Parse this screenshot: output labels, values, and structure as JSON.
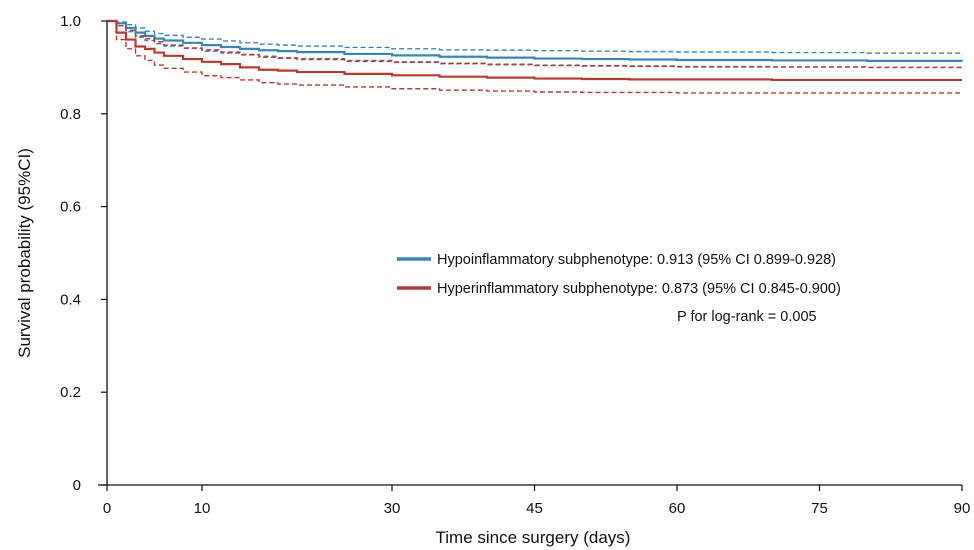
{
  "chart_data": {
    "type": "line",
    "xlabel": "Time since surgery (days)",
    "ylabel": "Survival probability (95%CI)",
    "xlim": [
      0,
      90
    ],
    "ylim": [
      0,
      1.0
    ],
    "x_ticks": [
      0,
      10,
      30,
      45,
      60,
      75,
      90
    ],
    "y_ticks": [
      0,
      0.2,
      0.4,
      0.6,
      0.8,
      1.0
    ],
    "x_tick_labels": [
      "0",
      "10",
      "30",
      "45",
      "60",
      "75",
      "90"
    ],
    "y_tick_labels": [
      "0",
      "0.2",
      "0.4",
      "0.6",
      "0.8",
      "1.0"
    ],
    "grid": false,
    "legend_position": "center-right",
    "annotation": "P for log-rank = 0.005",
    "series": [
      {
        "name": "Hypoinflammatory subphenotype:  0.913 (95% CI 0.899-0.928)",
        "color": "#3a86b8",
        "style": "solid",
        "x": [
          0,
          1,
          2,
          3,
          4,
          5,
          6,
          8,
          10,
          12,
          14,
          16,
          18,
          20,
          25,
          30,
          35,
          40,
          45,
          50,
          55,
          60,
          70,
          80,
          90
        ],
        "y": [
          1.0,
          0.995,
          0.985,
          0.975,
          0.968,
          0.962,
          0.958,
          0.953,
          0.948,
          0.944,
          0.94,
          0.937,
          0.935,
          0.933,
          0.929,
          0.926,
          0.923,
          0.921,
          0.919,
          0.918,
          0.917,
          0.916,
          0.915,
          0.914,
          0.913
        ]
      },
      {
        "name": "Hypo upper 95% CI",
        "color": "#3a86b8",
        "style": "dashed",
        "x": [
          0,
          1,
          2,
          3,
          4,
          5,
          6,
          8,
          10,
          12,
          14,
          16,
          18,
          20,
          25,
          30,
          35,
          40,
          45,
          50,
          55,
          60,
          70,
          80,
          90
        ],
        "y": [
          1.0,
          0.998,
          0.992,
          0.985,
          0.978,
          0.973,
          0.969,
          0.965,
          0.961,
          0.957,
          0.953,
          0.95,
          0.948,
          0.946,
          0.943,
          0.94,
          0.938,
          0.937,
          0.936,
          0.935,
          0.934,
          0.933,
          0.932,
          0.931,
          0.928
        ]
      },
      {
        "name": "Hypo lower 95% CI",
        "color": "#3a86b8",
        "style": "dashed",
        "x": [
          0,
          1,
          2,
          3,
          4,
          5,
          6,
          8,
          10,
          12,
          14,
          16,
          18,
          20,
          25,
          30,
          35,
          40,
          45,
          50,
          55,
          60,
          70,
          80,
          90
        ],
        "y": [
          1.0,
          0.99,
          0.977,
          0.965,
          0.958,
          0.951,
          0.946,
          0.941,
          0.935,
          0.931,
          0.927,
          0.924,
          0.921,
          0.919,
          0.915,
          0.912,
          0.909,
          0.907,
          0.905,
          0.904,
          0.903,
          0.902,
          0.901,
          0.9,
          0.899
        ]
      },
      {
        "name": "Hyperinflammatory subphenotype: 0.873 (95% CI 0.845-0.900)",
        "color": "#b83a2e",
        "style": "solid",
        "x": [
          0,
          1,
          2,
          3,
          4,
          5,
          6,
          8,
          10,
          12,
          14,
          16,
          18,
          20,
          25,
          30,
          35,
          40,
          45,
          50,
          55,
          60,
          70,
          80,
          90
        ],
        "y": [
          1.0,
          0.975,
          0.96,
          0.945,
          0.94,
          0.932,
          0.925,
          0.918,
          0.912,
          0.907,
          0.9,
          0.895,
          0.893,
          0.89,
          0.886,
          0.883,
          0.88,
          0.878,
          0.876,
          0.875,
          0.874,
          0.874,
          0.873,
          0.873,
          0.873
        ]
      },
      {
        "name": "Hyper upper 95% CI",
        "color": "#b83a2e",
        "style": "dashed",
        "x": [
          0,
          1,
          2,
          3,
          4,
          5,
          6,
          8,
          10,
          12,
          14,
          16,
          18,
          20,
          25,
          30,
          35,
          40,
          45,
          50,
          55,
          60,
          70,
          80,
          90
        ],
        "y": [
          1.0,
          0.99,
          0.98,
          0.968,
          0.962,
          0.955,
          0.948,
          0.942,
          0.938,
          0.933,
          0.928,
          0.922,
          0.92,
          0.917,
          0.913,
          0.911,
          0.908,
          0.906,
          0.904,
          0.903,
          0.902,
          0.901,
          0.901,
          0.9,
          0.9
        ]
      },
      {
        "name": "Hyper lower 95% CI",
        "color": "#b83a2e",
        "style": "dashed",
        "x": [
          0,
          1,
          2,
          3,
          4,
          5,
          6,
          8,
          10,
          12,
          14,
          16,
          18,
          20,
          25,
          30,
          35,
          40,
          45,
          50,
          55,
          60,
          70,
          80,
          90
        ],
        "y": [
          1.0,
          0.96,
          0.94,
          0.925,
          0.915,
          0.905,
          0.898,
          0.89,
          0.882,
          0.878,
          0.873,
          0.867,
          0.864,
          0.862,
          0.858,
          0.854,
          0.851,
          0.849,
          0.847,
          0.846,
          0.846,
          0.845,
          0.845,
          0.845,
          0.845
        ]
      }
    ],
    "legend": [
      {
        "label": "Hypoinflammatory subphenotype:  0.913 (95% CI 0.899-0.928)",
        "color": "#3a86b8"
      },
      {
        "label": "Hyperinflammatory subphenotype: 0.873 (95% CI 0.845-0.900)",
        "color": "#b83a2e"
      }
    ]
  }
}
